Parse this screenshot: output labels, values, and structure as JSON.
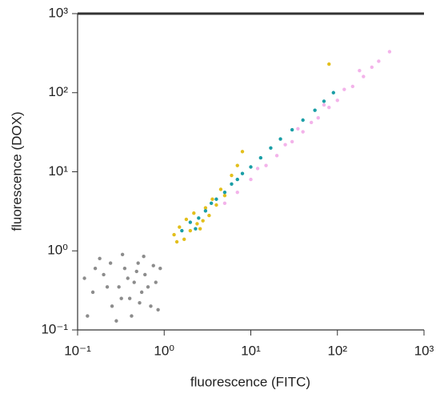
{
  "chart_data": {
    "type": "scatter",
    "xlabel": "fluorescence (FITC)",
    "ylabel": "fluorescence (DOX)",
    "xscale": "log",
    "yscale": "log",
    "xlim": [
      0.1,
      1000
    ],
    "ylim": [
      0.1,
      1000
    ],
    "xticks": [
      {
        "value": 0.1,
        "label": "10⁻¹"
      },
      {
        "value": 1,
        "label": "10⁰"
      },
      {
        "value": 10,
        "label": "10¹"
      },
      {
        "value": 100,
        "label": "10²"
      },
      {
        "value": 1000,
        "label": "10³"
      }
    ],
    "yticks": [
      {
        "value": 0.1,
        "label": "10⁻¹"
      },
      {
        "value": 1,
        "label": "10⁰"
      },
      {
        "value": 10,
        "label": "10¹"
      },
      {
        "value": 100,
        "label": "10²"
      },
      {
        "value": 1000,
        "label": "10³"
      }
    ],
    "series": [
      {
        "color": "#8c8c8c",
        "x": [
          0.15,
          0.2,
          0.25,
          0.3,
          0.35,
          0.4,
          0.45,
          0.5,
          0.55,
          0.6,
          0.7,
          0.8,
          0.9,
          0.13,
          0.18,
          0.22,
          0.28,
          0.33,
          0.38,
          0.42,
          0.48,
          0.52,
          0.58,
          0.65,
          0.75,
          0.85,
          0.12,
          0.16,
          0.24,
          0.32
        ],
        "values": [
          0.3,
          0.5,
          0.2,
          0.35,
          0.6,
          0.25,
          0.4,
          0.7,
          0.3,
          0.5,
          0.2,
          0.4,
          0.6,
          0.15,
          0.8,
          0.35,
          0.13,
          0.9,
          0.45,
          0.15,
          0.55,
          0.22,
          0.85,
          0.35,
          0.65,
          0.18,
          0.45,
          0.6,
          0.7,
          0.25
        ]
      },
      {
        "color": "#f3b3ea",
        "x": [
          5,
          7,
          10,
          12,
          15,
          20,
          25,
          30,
          40,
          50,
          60,
          80,
          100,
          120,
          150,
          200,
          250,
          300,
          400,
          35,
          70,
          180
        ],
        "values": [
          4,
          5.5,
          8,
          11,
          12,
          16,
          22,
          24,
          32,
          42,
          48,
          65,
          80,
          110,
          120,
          160,
          210,
          250,
          330,
          35,
          70,
          190
        ]
      },
      {
        "color": "#e3bf1c",
        "x": [
          1.3,
          1.5,
          1.7,
          1.8,
          2,
          2.2,
          2.4,
          2.6,
          3,
          3.3,
          3.6,
          4,
          4.5,
          5,
          6,
          7,
          8,
          1.4,
          2.8,
          80
        ],
        "values": [
          1.6,
          2,
          1.4,
          2.5,
          1.8,
          3,
          2.2,
          1.9,
          3.5,
          2.8,
          4.5,
          3.8,
          6,
          5,
          9,
          12,
          18,
          1.3,
          2.4,
          230
        ]
      },
      {
        "color": "#1a9ea6",
        "x": [
          1.6,
          2,
          2.5,
          3,
          3.5,
          4,
          5,
          6,
          7,
          8,
          10,
          13,
          17,
          22,
          30,
          40,
          55,
          70,
          90,
          2.3
        ],
        "values": [
          1.8,
          2.3,
          2.6,
          3.2,
          4,
          4.5,
          5.5,
          7,
          8,
          9.5,
          11.5,
          15,
          20,
          26,
          34,
          45,
          60,
          78,
          100,
          1.9
        ]
      }
    ]
  }
}
